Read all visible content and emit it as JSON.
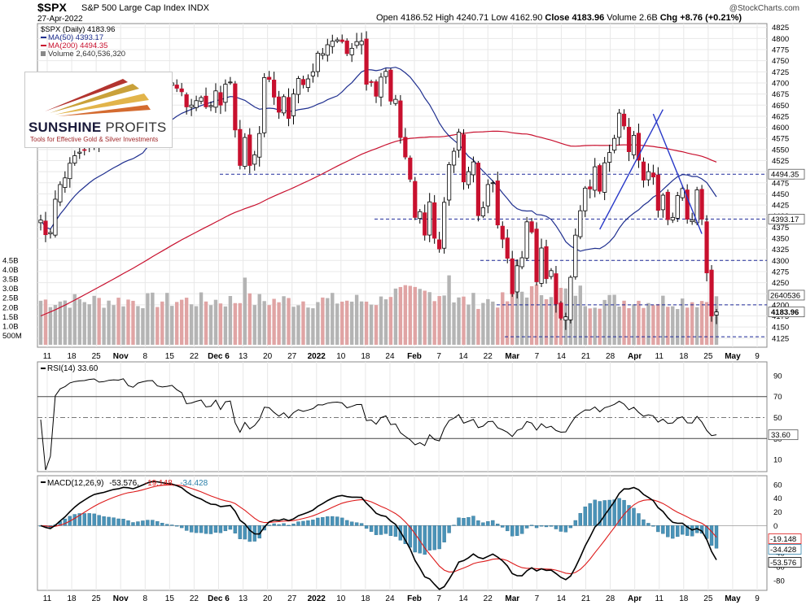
{
  "header": {
    "ticker": "$SPX",
    "description": "S&P 500 Large Cap Index",
    "exchange": "INDX",
    "watermark": "@StockCharts.com",
    "date": "27-Apr-2022",
    "open_label": "Open",
    "open": "4186.52",
    "high_label": "High",
    "high": "4240.71",
    "low_label": "Low",
    "low": "4162.90",
    "close_label": "Close",
    "close": "4183.96",
    "volume_label": "Volume",
    "volume": "2.6B",
    "chg_label": "Chg",
    "chg": "+8.76 (+0.21%)"
  },
  "legend": {
    "price": "$SPX (Daily) 4183.96",
    "ma50": "MA(50) 4393.17",
    "ma200": "MA(200) 4494.35",
    "volume": "Volume 2,640,536,320"
  },
  "logo": {
    "brand_a": "SUNSHINE",
    "brand_b": "PROFITS",
    "tagline": "Tools for Effective Gold & Silver Investments"
  },
  "colors": {
    "up": "#ffffff",
    "down": "#c8102e",
    "ma50": "#1f2f8f",
    "ma200": "#c8102e",
    "vol_up": "#b4b4b4",
    "vol_down": "#e0a4a4",
    "rsi": "#000000",
    "macd": "#000000",
    "signal": "#dd1a1a",
    "histogram": "#4a93b8",
    "level_line": "#1e2a9a",
    "grid": "#e8e8e8"
  },
  "chart_data": [
    {
      "type": "candlestick",
      "title": "$SPX (Daily) 4183.96",
      "x_ticks": [
        "11",
        "18",
        "25",
        "Nov",
        "8",
        "15",
        "22",
        "Dec 6",
        "13",
        "20",
        "27",
        "2022",
        "10",
        "18",
        "24",
        "Feb",
        "7",
        "14",
        "22",
        "Mar",
        "7",
        "14",
        "21",
        "28",
        "Apr",
        "11",
        "18",
        "25",
        "May",
        "9"
      ],
      "y_ticks": [
        "4825",
        "4800",
        "4775",
        "4750",
        "4725",
        "4700",
        "4675",
        "4650",
        "4625",
        "4600",
        "4575",
        "4550",
        "4525",
        "4500",
        "4475",
        "4450",
        "4425",
        "4400",
        "4375",
        "4350",
        "4325",
        "4300",
        "4275",
        "4250",
        "4225",
        "4200",
        "4175",
        "4150",
        "4125"
      ],
      "ylim": [
        4110,
        4830
      ],
      "series_close": [
        4391,
        4358,
        4363,
        4438,
        4471,
        4486,
        4519,
        4536,
        4544,
        4549,
        4567,
        4575,
        4566,
        4574,
        4596,
        4606,
        4605,
        4630,
        4610,
        4605,
        4660,
        4680,
        4697,
        4701,
        4685,
        4682,
        4689,
        4700,
        4688,
        4680,
        4646,
        4650,
        4660,
        4667,
        4646,
        4649,
        4682,
        4650,
        4697,
        4702,
        4594,
        4514,
        4577,
        4514,
        4538,
        4586,
        4712,
        4708,
        4668,
        4634,
        4669,
        4620,
        4675,
        4710,
        4696,
        4709,
        4725,
        4767,
        4766,
        4786,
        4794,
        4797,
        4793,
        4766,
        4778,
        4793,
        4794,
        4697,
        4701,
        4670,
        4713,
        4726,
        4659,
        4663,
        4577,
        4533,
        4483,
        4397,
        4410,
        4357,
        4432,
        4350,
        4326,
        4431,
        4516,
        4546,
        4589,
        4477,
        4500,
        4522,
        4401,
        4419,
        4471,
        4475,
        4380,
        4348,
        4305,
        4225,
        4288,
        4306,
        4387,
        4364,
        4252,
        4328,
        4259,
        4277,
        4202,
        4170,
        4173,
        4262,
        4357,
        4412,
        4463,
        4461,
        4511,
        4456,
        4520,
        4543,
        4575,
        4632,
        4603,
        4545,
        4582,
        4526,
        4481,
        4500,
        4488,
        4413,
        4447,
        4392,
        4397,
        4446,
        4462,
        4393,
        4391,
        4459,
        4393,
        4272,
        4175,
        4184
      ],
      "ma50_last": 4393.17,
      "ma200_last": 4494.35,
      "horizontal_levels": [
        4494.35,
        4393.17,
        4300,
        4200,
        4128
      ],
      "last_value_label": "4183.96"
    },
    {
      "type": "bar",
      "title": "Volume 2,640,536,320",
      "y_ticks": [
        "4.5B",
        "4.0B",
        "3.5B",
        "3.0B",
        "2.5B",
        "2.0B",
        "1.5B",
        "1.0B",
        "500M"
      ],
      "ylim": [
        0,
        4.8
      ],
      "last_value_label": "2640536"
    },
    {
      "type": "line",
      "title": "RSI(14) 33.60",
      "y_ticks": [
        "90",
        "70",
        "50",
        "30",
        "10"
      ],
      "ylim": [
        0,
        100
      ],
      "reference_lines": [
        70,
        50,
        30
      ],
      "last_value_label": "33.60"
    },
    {
      "type": "line",
      "title": "MACD(12,26,9) -53.576, -19.148, -34.428",
      "macd_label": "MACD(12,26,9)",
      "macd_value": "-53.576,",
      "signal_value": "-19.148,",
      "histogram_value": "-34.428",
      "y_ticks": [
        "60",
        "40",
        "20",
        "0",
        "-20",
        "-40",
        "-60",
        "-80"
      ],
      "ylim": [
        -92,
        68
      ],
      "last_value_labels": [
        "-19.148",
        "-34.428",
        "-53.576"
      ]
    }
  ]
}
